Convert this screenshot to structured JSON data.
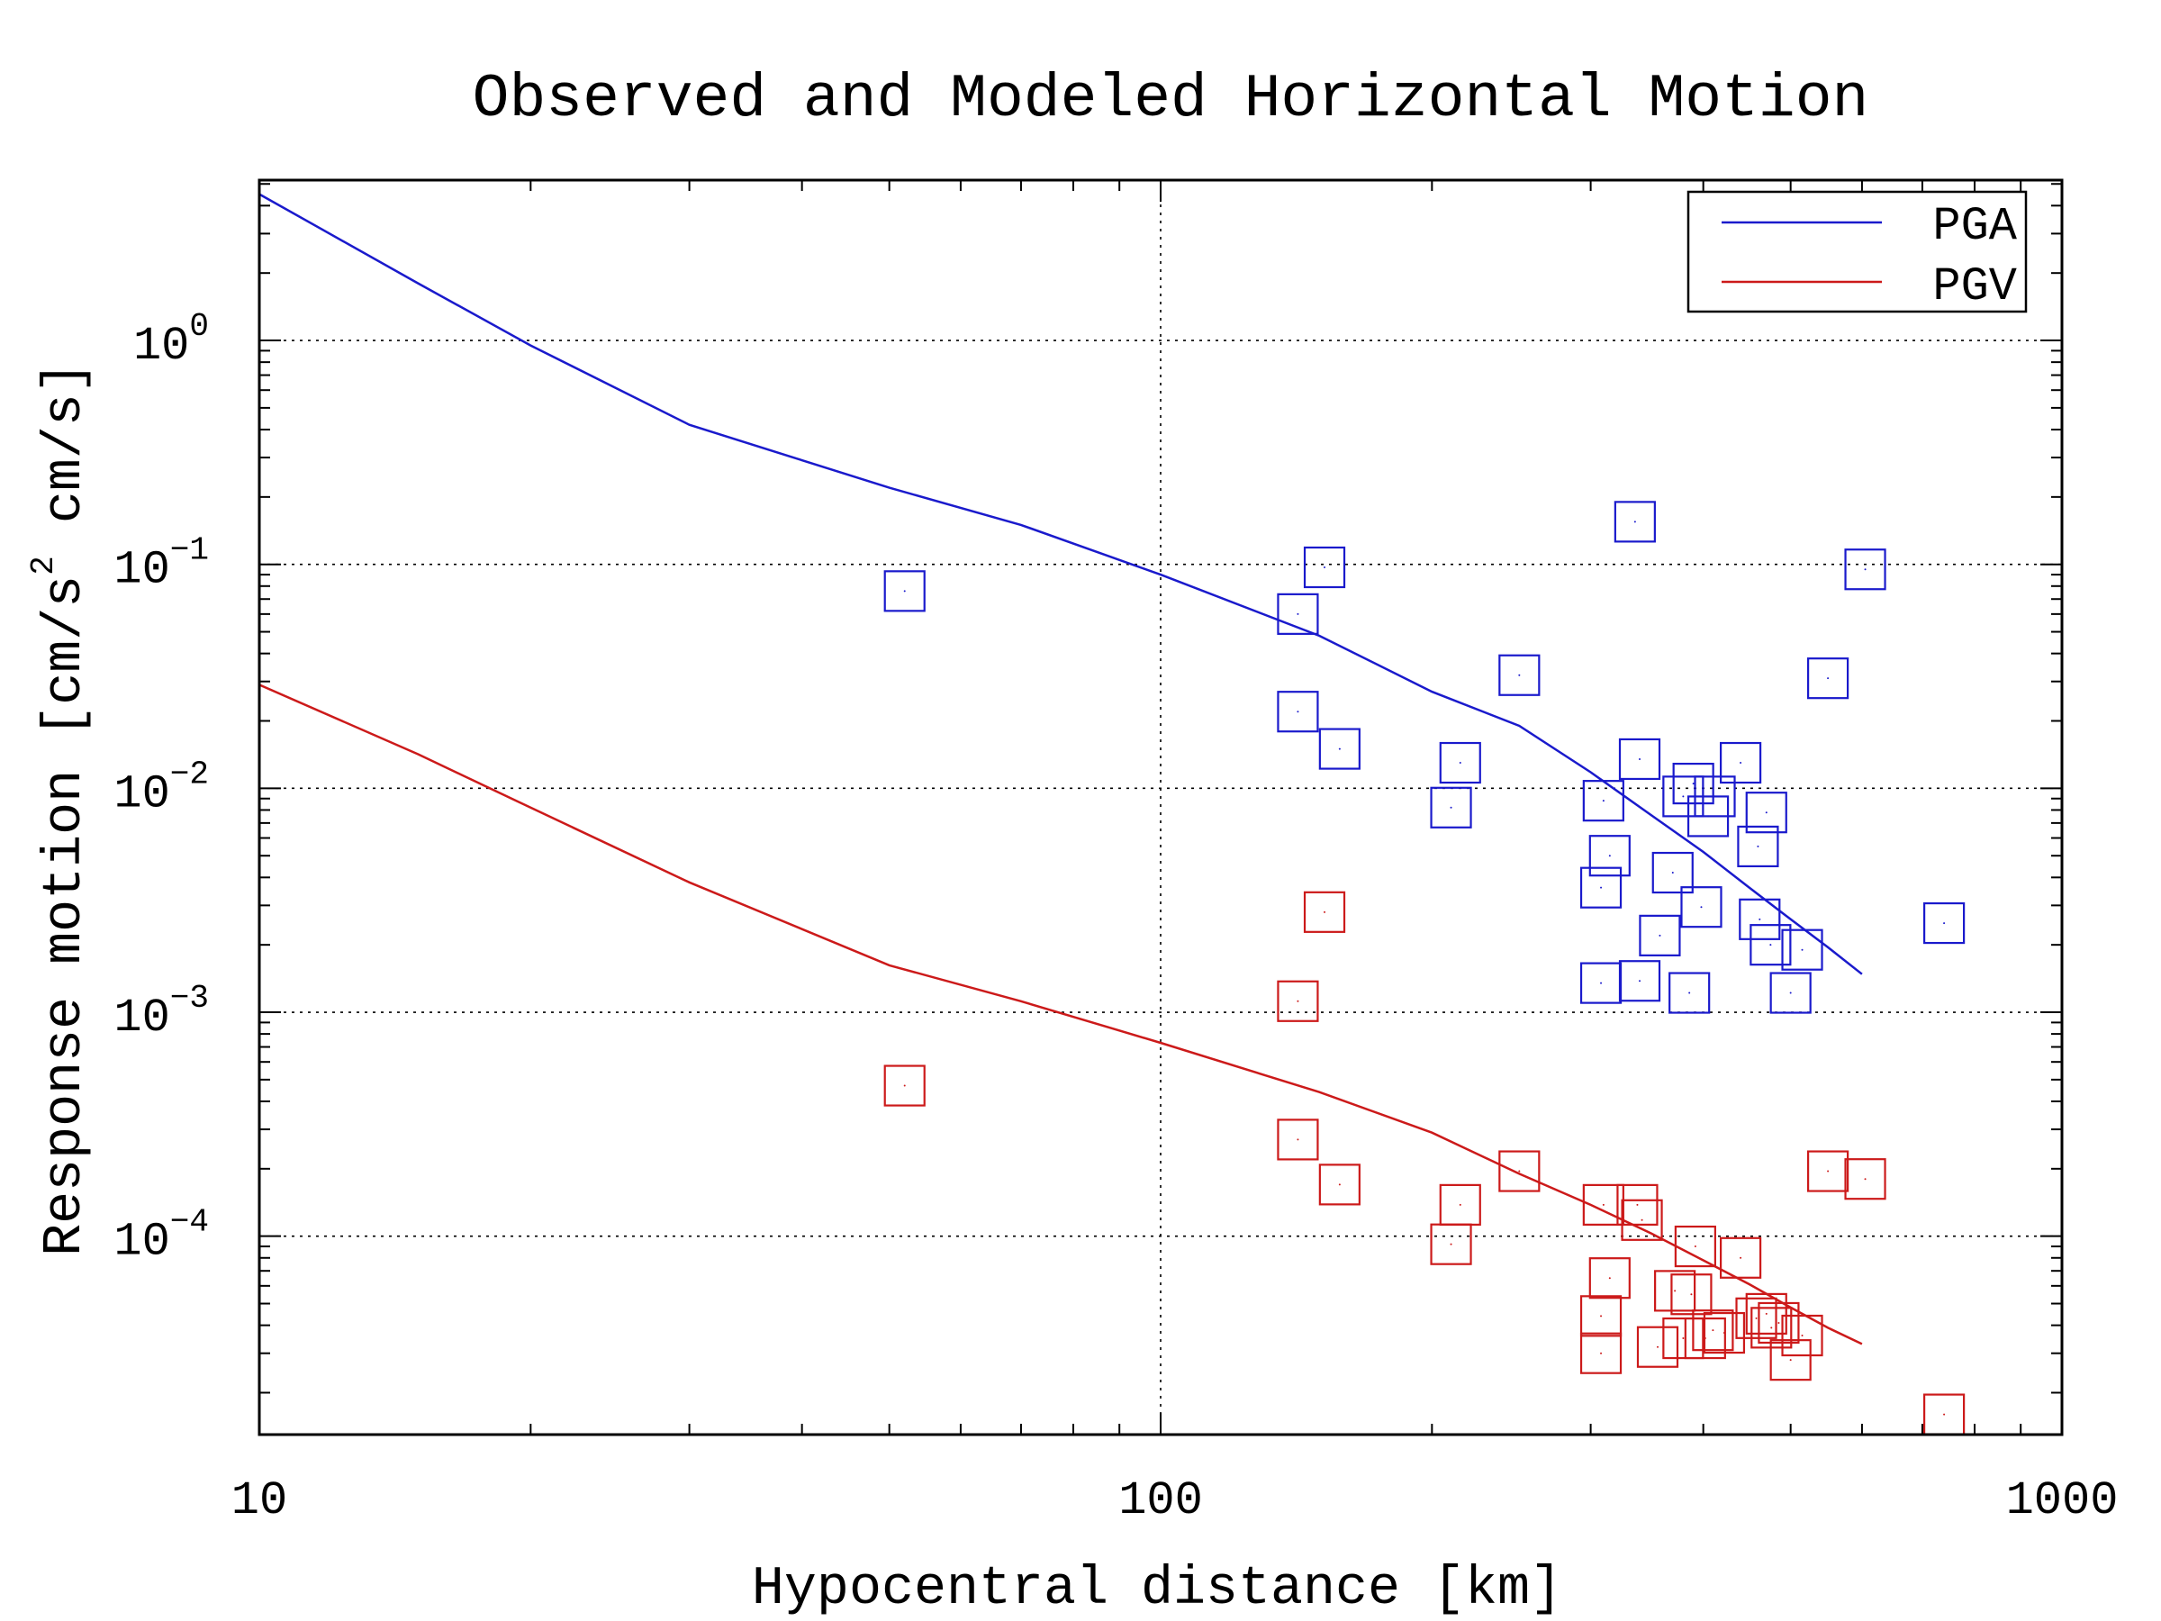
{
  "chart_data": {
    "type": "scatter",
    "title": "Observed and Modeled Horizontal Motion",
    "xlabel": "Hypocentral distance [km]",
    "ylabel": {
      "pre": "Response motion  [cm/s",
      "sup": "2",
      "post": "  cm/s]"
    },
    "xscale": "log",
    "yscale": "log",
    "xlim": [
      10,
      1000
    ],
    "ylim": [
      1.3e-05,
      5.2
    ],
    "grid": true,
    "legend_position": "top-right",
    "x_ticks": [
      {
        "value": 10,
        "label": "10"
      },
      {
        "value": 100,
        "label": "100"
      },
      {
        "value": 1000,
        "label": "1000"
      }
    ],
    "y_ticks": [
      {
        "value": 1,
        "base": "10",
        "exp": "0"
      },
      {
        "value": 0.1,
        "base": "10",
        "exp": "−1"
      },
      {
        "value": 0.01,
        "base": "10",
        "exp": "−2"
      },
      {
        "value": 0.001,
        "base": "10",
        "exp": "−3"
      },
      {
        "value": 0.0001,
        "base": "10",
        "exp": "−4"
      }
    ],
    "series": [
      {
        "name": "PGA",
        "color": "#1a1acc",
        "line": {
          "x": [
            10,
            15,
            20,
            30,
            50,
            70,
            100,
            150,
            200,
            250,
            300,
            350,
            400,
            450,
            500,
            550,
            600
          ],
          "y": [
            4.5,
            1.8,
            0.95,
            0.42,
            0.22,
            0.15,
            0.09,
            0.048,
            0.027,
            0.019,
            0.0118,
            0.0076,
            0.0052,
            0.0036,
            0.0026,
            0.00195,
            0.00148
          ]
        },
        "points": [
          [
            52,
            0.076
          ],
          [
            142,
            0.06
          ],
          [
            152,
            0.097
          ],
          [
            142,
            0.022
          ],
          [
            158,
            0.015
          ],
          [
            210,
            0.0082
          ],
          [
            215,
            0.013
          ],
          [
            250,
            0.032
          ],
          [
            310,
            0.0088
          ],
          [
            315,
            0.005
          ],
          [
            308,
            0.0036
          ],
          [
            308,
            0.00135
          ],
          [
            340,
            0.0135
          ],
          [
            340,
            0.00138
          ],
          [
            358,
            0.0022
          ],
          [
            370,
            0.0042
          ],
          [
            380,
            0.0092
          ],
          [
            390,
            0.0105
          ],
          [
            398,
            0.00295
          ],
          [
            386,
            0.00122
          ],
          [
            405,
            0.0075
          ],
          [
            412,
            0.0092
          ],
          [
            440,
            0.013
          ],
          [
            460,
            0.0055
          ],
          [
            470,
            0.0078
          ],
          [
            462,
            0.0026
          ],
          [
            475,
            0.002
          ],
          [
            500,
            0.00122
          ],
          [
            515,
            0.0019
          ],
          [
            550,
            0.031
          ],
          [
            605,
            0.095
          ],
          [
            740,
            0.0025
          ],
          [
            336,
            0.155
          ]
        ]
      },
      {
        "name": "PGV",
        "color": "#cc1a1a",
        "line": {
          "x": [
            10,
            15,
            20,
            30,
            50,
            70,
            100,
            150,
            200,
            250,
            300,
            350,
            400,
            450,
            500,
            550,
            600
          ],
          "y": [
            0.029,
            0.0142,
            0.0082,
            0.0038,
            0.00162,
            0.00112,
            0.00073,
            0.00044,
            0.00029,
            0.00019,
            0.000138,
            0.000103,
            7.8e-05,
            6.1e-05,
            4.8e-05,
            3.9e-05,
            3.3e-05
          ]
        },
        "points": [
          [
            52,
            0.00047
          ],
          [
            142,
            0.00112
          ],
          [
            152,
            0.0028
          ],
          [
            142,
            0.00027
          ],
          [
            158,
            0.00017
          ],
          [
            210,
            9.2e-05
          ],
          [
            215,
            0.000138
          ],
          [
            250,
            0.000195
          ],
          [
            310,
            0.000138
          ],
          [
            315,
            6.5e-05
          ],
          [
            308,
            4.4e-05
          ],
          [
            308,
            3e-05
          ],
          [
            342,
            0.000118
          ],
          [
            338,
            0.000138
          ],
          [
            356,
            3.2e-05
          ],
          [
            372,
            5.7e-05
          ],
          [
            380,
            3.5e-05
          ],
          [
            392,
            9e-05
          ],
          [
            388,
            5.5e-05
          ],
          [
            402,
            3.5e-05
          ],
          [
            410,
            3.8e-05
          ],
          [
            422,
            3.7e-05
          ],
          [
            440,
            8e-05
          ],
          [
            458,
            4.3e-05
          ],
          [
            470,
            4.5e-05
          ],
          [
            476,
            3.9e-05
          ],
          [
            485,
            4.1e-05
          ],
          [
            500,
            2.8e-05
          ],
          [
            515,
            3.6e-05
          ],
          [
            550,
            0.000195
          ],
          [
            605,
            0.00018
          ],
          [
            740,
            1.6e-05
          ]
        ]
      }
    ]
  }
}
